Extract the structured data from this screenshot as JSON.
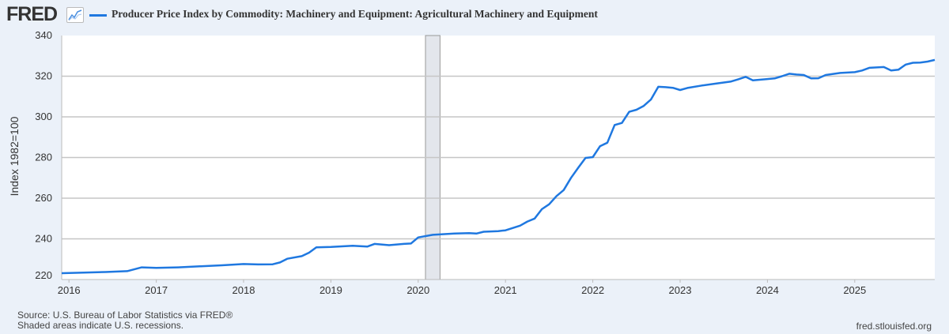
{
  "header": {
    "logo": "FRED",
    "logo_icon": "line-chart-icon"
  },
  "footer": {
    "source": "Source: U.S. Bureau of Labor Statistics via FRED®",
    "note": "Shaded areas indicate U.S. recessions.",
    "credit": "fred.stlouisfed.org"
  },
  "chart_data": {
    "type": "line",
    "title": "Producer Price Index by Commodity: Machinery and Equipment: Agricultural Machinery and Equipment",
    "ylabel": "Index 1982=100",
    "xlabel": "",
    "ylim": [
      220,
      340
    ],
    "yticks": [
      220,
      240,
      260,
      280,
      300,
      320,
      340
    ],
    "xticks": [
      "2016",
      "2017",
      "2018",
      "2019",
      "2020",
      "2021",
      "2022",
      "2023",
      "2024",
      "2025"
    ],
    "xlim": [
      "2015-12",
      "2025-12"
    ],
    "grid": true,
    "line_color": "#1f78e0",
    "recessions": [
      {
        "start": "2020-02",
        "end": "2020-04"
      }
    ],
    "series": [
      {
        "x": [
          "2015-12",
          "2016-03",
          "2016-06",
          "2016-09",
          "2016-11",
          "2017-01",
          "2017-04",
          "2017-07",
          "2017-10",
          "2018-01",
          "2018-03",
          "2018-05",
          "2018-06",
          "2018-07",
          "2018-09",
          "2018-10",
          "2018-11",
          "2019-01",
          "2019-03",
          "2019-04",
          "2019-06",
          "2019-07",
          "2019-09",
          "2019-11",
          "2019-12",
          "2020-01",
          "2020-03",
          "2020-06",
          "2020-08",
          "2020-09",
          "2020-10",
          "2020-12",
          "2021-01",
          "2021-03",
          "2021-04",
          "2021-05",
          "2021-06",
          "2021-07",
          "2021-08",
          "2021-09",
          "2021-10",
          "2021-11",
          "2021-12",
          "2022-01",
          "2022-02",
          "2022-03",
          "2022-04",
          "2022-05",
          "2022-06",
          "2022-07",
          "2022-08",
          "2022-09",
          "2022-10",
          "2022-11",
          "2022-12",
          "2023-01",
          "2023-02",
          "2023-04",
          "2023-06",
          "2023-08",
          "2023-09",
          "2023-10",
          "2023-11",
          "2024-01",
          "2024-02",
          "2024-03",
          "2024-04",
          "2024-05",
          "2024-06",
          "2024-07",
          "2024-08",
          "2024-09",
          "2024-11",
          "2025-01",
          "2025-02",
          "2025-03",
          "2025-04",
          "2025-05",
          "2025-06",
          "2025-07",
          "2025-08",
          "2025-09",
          "2025-10",
          "2025-11",
          "2025-12"
        ],
        "y": [
          223.1,
          223.4,
          223.7,
          224.1,
          226.0,
          225.7,
          226.0,
          226.5,
          227.0,
          227.6,
          227.4,
          227.5,
          228.4,
          230.2,
          231.5,
          233.2,
          235.8,
          236.0,
          236.4,
          236.6,
          236.2,
          237.5,
          236.9,
          237.5,
          237.7,
          240.7,
          242.0,
          242.6,
          242.8,
          242.6,
          243.5,
          243.8,
          244.2,
          246.5,
          248.5,
          250.0,
          254.6,
          257.0,
          261.0,
          264.0,
          270.0,
          275.0,
          279.8,
          280.2,
          285.6,
          287.3,
          296.0,
          297.0,
          302.5,
          303.5,
          305.4,
          308.6,
          314.8,
          314.6,
          314.3,
          313.2,
          314.2,
          315.4,
          316.4,
          317.4,
          318.5,
          319.7,
          318.0,
          318.6,
          318.9,
          320.0,
          321.2,
          320.8,
          320.6,
          318.9,
          319.0,
          320.6,
          321.6,
          322.0,
          322.8,
          324.1,
          324.3,
          324.5,
          322.8,
          323.2,
          325.7,
          326.6,
          326.7,
          327.2,
          328.0
        ]
      }
    ]
  }
}
